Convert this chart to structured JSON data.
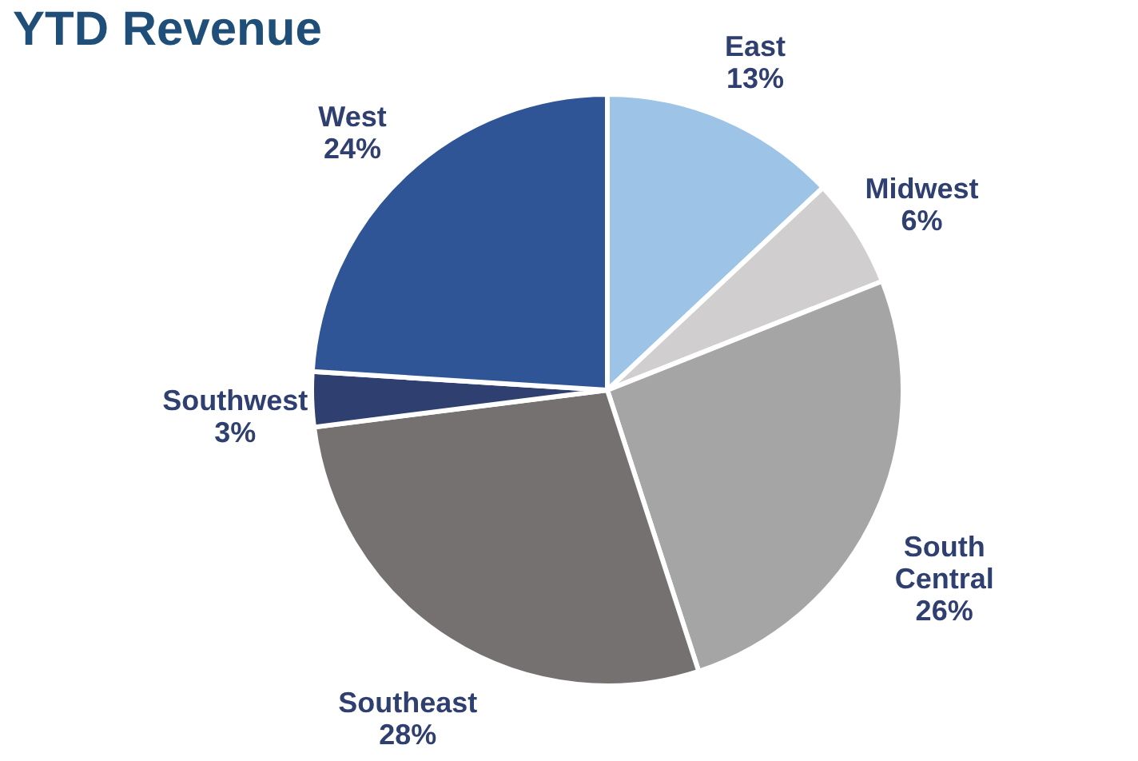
{
  "chart_data": {
    "type": "pie",
    "title": "YTD Revenue",
    "categories": [
      "East",
      "Midwest",
      "South Central",
      "Southeast",
      "Southwest",
      "West"
    ],
    "values": [
      13,
      6,
      26,
      28,
      3,
      24
    ],
    "value_labels": [
      "13%",
      "6%",
      "26%",
      "28%",
      "3%",
      "24%"
    ],
    "colors": [
      "#9dc3e6",
      "#d0cece",
      "#a5a5a5",
      "#767171",
      "#2f3f6f",
      "#2f5597"
    ]
  }
}
